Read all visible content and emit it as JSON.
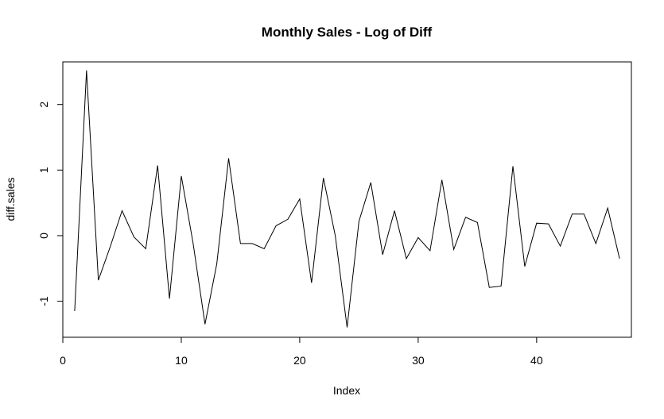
{
  "chart_data": {
    "type": "line",
    "title": "Monthly Sales - Log of Diff",
    "xlabel": "Index",
    "ylabel": "diff.sales",
    "xlim": [
      0,
      48
    ],
    "ylim": [
      -1.55,
      2.65
    ],
    "x_ticks": [
      0,
      10,
      20,
      30,
      40
    ],
    "y_ticks": [
      -1,
      0,
      1,
      2
    ],
    "grid": false,
    "line_color": "#000000",
    "series": [
      {
        "x": [
          1,
          2,
          3,
          4,
          5,
          6,
          7,
          8,
          9,
          10,
          11,
          12,
          13,
          14,
          15,
          16,
          17,
          18,
          19,
          20,
          21,
          22,
          23,
          24,
          25,
          26,
          27,
          28,
          29,
          30,
          31,
          32,
          33,
          34,
          35,
          36,
          37,
          38,
          39,
          40,
          41,
          42,
          43,
          44,
          45,
          46,
          47
        ],
        "values": [
          -1.15,
          2.52,
          -0.68,
          -0.17,
          0.38,
          -0.02,
          -0.2,
          1.07,
          -0.96,
          0.91,
          -0.12,
          -1.35,
          -0.43,
          1.18,
          -0.12,
          -0.12,
          -0.2,
          0.15,
          0.25,
          0.56,
          -0.72,
          0.88,
          0.0,
          -1.4,
          0.22,
          0.81,
          -0.29,
          0.38,
          -0.35,
          -0.03,
          -0.23,
          0.85,
          -0.21,
          0.28,
          0.2,
          -0.79,
          -0.77,
          1.06,
          -0.47,
          0.19,
          0.18,
          -0.16,
          0.33,
          0.33,
          -0.12,
          0.42,
          -0.35
        ]
      }
    ]
  }
}
